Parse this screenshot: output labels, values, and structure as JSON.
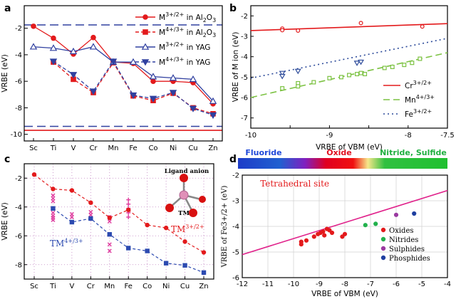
{
  "chart_data": [
    {
      "panel": "a",
      "type": "line",
      "xlabel": "",
      "ylabel": "VRBE (eV)",
      "ylim": [
        -10.5,
        -0.3
      ],
      "yticks": [
        -2,
        -4,
        -6,
        -8,
        -10
      ],
      "categories": [
        "Sc",
        "Ti",
        "V",
        "Cr",
        "Mn",
        "Fe",
        "Co",
        "Ni",
        "Cu",
        "Zn"
      ],
      "series": [
        {
          "name": "M3+/2+ in Al2O3",
          "color": "#e31a1c",
          "marker": "circle",
          "dash": false,
          "values": [
            -1.85,
            -2.75,
            -3.95,
            -2.7,
            -4.55,
            -4.65,
            -6.0,
            -6.0,
            -6.1,
            -7.7
          ]
        },
        {
          "name": "M4+/3+ in Al2O3",
          "color": "#e31a1c",
          "marker": "square",
          "dash": true,
          "values": [
            null,
            -4.55,
            -5.85,
            -6.85,
            -4.6,
            -7.1,
            -7.45,
            -6.9,
            -8.0,
            -8.45
          ]
        },
        {
          "name": "M3+/2+ in YAG",
          "color": "#3040a0",
          "marker": "tri-up",
          "dash": false,
          "values": [
            -3.4,
            -3.5,
            -3.75,
            -3.4,
            -4.55,
            -4.55,
            -5.65,
            -5.75,
            -5.85,
            -7.5
          ]
        },
        {
          "name": "M4+/3+ in YAG",
          "color": "#3040a0",
          "marker": "tri-down",
          "dash": true,
          "values": [
            null,
            -4.5,
            -5.5,
            -6.75,
            -4.5,
            -7.05,
            -7.3,
            -6.85,
            -8.05,
            -8.55
          ]
        }
      ],
      "hlines": [
        {
          "y": -1.75,
          "color": "#3040a0",
          "style": "dashed"
        },
        {
          "y": -9.4,
          "color": "#3040a0",
          "style": "dashed"
        },
        {
          "y": -9.7,
          "color": "#e31a1c",
          "style": "solid"
        }
      ],
      "legend": [
        {
          "main": "M",
          "sup": "3+/2+",
          "rest": " in Al",
          "sub": "2",
          "tail": "O",
          "sub2": "3"
        },
        {
          "main": "M",
          "sup": "4+/3+",
          "rest": " in Al",
          "sub": "2",
          "tail": "O",
          "sub2": "3"
        },
        {
          "main": "M",
          "sup": "3+/2+",
          "rest": " in YAG",
          "sub": "",
          "tail": "",
          "sub2": ""
        },
        {
          "main": "M",
          "sup": "4+/3+",
          "rest": " in YAG",
          "sub": "",
          "tail": "",
          "sub2": ""
        }
      ]
    },
    {
      "panel": "b",
      "type": "scatter",
      "xlabel": "VRBE of VBM (eV)",
      "ylabel": "VRBE of M ion (eV)",
      "xlim": [
        -10,
        -7.5
      ],
      "ylim": [
        -7.5,
        -1.5
      ],
      "xticks": [
        -10,
        -9.5,
        -9,
        -8.5,
        -8,
        -7.5
      ],
      "xticklabels": [
        "-10",
        "",
        "-9",
        "",
        "-8",
        "-7.5"
      ],
      "yticks": [
        -2,
        -3,
        -4,
        -5,
        -6,
        -7
      ],
      "series": [
        {
          "name": "Cr3+/2+",
          "color": "#e31a1c",
          "marker": "circle",
          "points": [
            [
              -9.6,
              -2.62
            ],
            [
              -9.6,
              -2.7
            ],
            [
              -9.4,
              -2.72
            ],
            [
              -8.6,
              -2.35
            ],
            [
              -7.82,
              -2.52
            ]
          ],
          "fit": [
            [
              -10,
              -2.72
            ],
            [
              -7.5,
              -2.38
            ]
          ],
          "fitstyle": "solid"
        },
        {
          "name": "Mn4+/3+",
          "color": "#7cc242",
          "marker": "square",
          "points": [
            [
              -9.6,
              -5.55
            ],
            [
              -9.4,
              -5.3
            ],
            [
              -9.4,
              -5.45
            ],
            [
              -9.2,
              -5.25
            ],
            [
              -9.0,
              -5.05
            ],
            [
              -8.85,
              -5.0
            ],
            [
              -8.75,
              -4.9
            ],
            [
              -8.65,
              -4.85
            ],
            [
              -8.6,
              -4.8
            ],
            [
              -8.55,
              -4.85
            ],
            [
              -8.3,
              -4.55
            ],
            [
              -8.2,
              -4.5
            ],
            [
              -8.05,
              -4.4
            ],
            [
              -7.95,
              -4.3
            ],
            [
              -7.85,
              -4.1
            ]
          ],
          "fit": [
            [
              -10,
              -6.0
            ],
            [
              -7.5,
              -3.8
            ]
          ],
          "fitstyle": "dashed"
        },
        {
          "name": "Fe3+/2+",
          "color": "#2c4a9a",
          "marker": "tri-down",
          "points": [
            [
              -9.6,
              -4.8
            ],
            [
              -9.6,
              -4.95
            ],
            [
              -9.4,
              -4.7
            ],
            [
              -8.65,
              -4.3
            ],
            [
              -8.6,
              -4.25
            ]
          ],
          "fit": [
            [
              -10,
              -5.05
            ],
            [
              -7.5,
              -3.1
            ]
          ],
          "fitstyle": "dotted"
        }
      ],
      "legend": [
        {
          "base": "Cr",
          "sup": "3+/2+"
        },
        {
          "base": "Mn",
          "sup": "4+/3+"
        },
        {
          "base": "Fe",
          "sup": "3+/2+"
        }
      ]
    },
    {
      "panel": "c",
      "type": "line",
      "xlabel": "",
      "ylabel": "VRBE (eV)",
      "ylim": [
        -9,
        -1
      ],
      "yticks": [
        -2,
        -4,
        -6,
        -8
      ],
      "categories": [
        "Sc",
        "Ti",
        "V",
        "Cr",
        "Mn",
        "Fe",
        "Co",
        "Ni",
        "Cu",
        "Zn"
      ],
      "series": [
        {
          "name": "TM3+/2+",
          "color": "#e31a1c",
          "marker": "circle",
          "dash": true,
          "values": [
            -1.75,
            -2.75,
            -2.85,
            -3.7,
            -4.75,
            -4.2,
            -5.25,
            -5.45,
            -6.4,
            -7.15
          ]
        },
        {
          "name": "TM4+/3+",
          "color": "#2c4ab0",
          "marker": "square",
          "dash": true,
          "values": [
            null,
            -4.1,
            -5.05,
            -4.8,
            -5.9,
            -6.85,
            -7.05,
            -7.9,
            -8.05,
            -8.55
          ]
        }
      ],
      "scatter_marks": [
        {
          "cat": "Ti",
          "vals": [
            -3.2,
            -3.4,
            -3.6,
            -4.4,
            -4.6,
            -4.75,
            -4.9
          ]
        },
        {
          "cat": "V",
          "vals": [
            -4.5,
            -4.7
          ]
        },
        {
          "cat": "Cr",
          "vals": [
            -4.35,
            -4.55
          ]
        },
        {
          "cat": "Mn",
          "vals": [
            -4.7,
            -5.0
          ]
        },
        {
          "cat": "Fe",
          "vals": [
            -3.5,
            -3.8,
            -4.1,
            -4.4,
            -4.7
          ]
        },
        {
          "cat": "Mn",
          "vals": [
            -6.6,
            -7.05
          ]
        }
      ],
      "annotations": [
        {
          "text": "TM",
          "sup": "3+/2+",
          "color": "#e31a1c"
        },
        {
          "text": "TM",
          "sup": "4+/3+",
          "color": "#2c4ab0"
        },
        {
          "text": "Ligand anion",
          "color": "#000000"
        },
        {
          "text": "TM",
          "color": "#000000"
        }
      ]
    },
    {
      "panel": "d",
      "type": "scatter",
      "xlabel": "VRBE of VBM (eV)",
      "ylabel": "VRBE of Fe3+/2+ (eV)",
      "xlim": [
        -12,
        -4
      ],
      "ylim": [
        -6,
        -2
      ],
      "xticks": [
        -12,
        -11,
        -10,
        -9,
        -8,
        -7,
        -6,
        -5,
        -4
      ],
      "yticks": [
        -2,
        -3,
        -4,
        -5,
        -6
      ],
      "colorbar": [
        "Fluoride",
        "Oxide",
        "Nitride, Sulfide"
      ],
      "title_in_plot": "Tetrahedral site",
      "fit": [
        [
          -12,
          -5.1
        ],
        [
          -4,
          -2.6
        ]
      ],
      "series": [
        {
          "name": "Oxides",
          "color": "#e31a1c",
          "points": [
            [
              -9.7,
              -4.6
            ],
            [
              -9.5,
              -4.55
            ],
            [
              -9.2,
              -4.4
            ],
            [
              -9.05,
              -4.3
            ],
            [
              -8.95,
              -4.25
            ],
            [
              -8.85,
              -4.2
            ],
            [
              -8.8,
              -4.35
            ],
            [
              -8.7,
              -4.1
            ],
            [
              -8.6,
              -4.15
            ],
            [
              -8.5,
              -4.25
            ],
            [
              -8.1,
              -4.4
            ],
            [
              -8.0,
              -4.3
            ],
            [
              -9.7,
              -4.7
            ]
          ]
        },
        {
          "name": "Nitrides",
          "color": "#22b14c",
          "points": [
            [
              -7.2,
              -3.95
            ],
            [
              -6.8,
              -3.9
            ]
          ]
        },
        {
          "name": "Sulphides",
          "color": "#9a3aa0",
          "points": [
            [
              -6.0,
              -3.55
            ]
          ]
        },
        {
          "name": "Phosphides",
          "color": "#1f3fa0",
          "points": [
            [
              -5.3,
              -3.5
            ]
          ]
        }
      ]
    }
  ],
  "panel_labels": [
    "a",
    "b",
    "c",
    "d"
  ]
}
